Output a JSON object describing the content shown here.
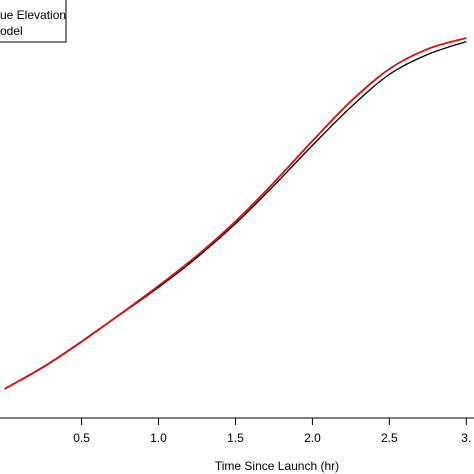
{
  "chart_data": {
    "type": "line",
    "xlabel": "Time Since Launch (hr)",
    "xlim": [
      -0.03,
      3.05
    ],
    "ylim": [
      0,
      1
    ],
    "x_ticks": [
      0.5,
      1.0,
      1.5,
      2.0,
      2.5,
      3.0
    ],
    "x_tick_labels": [
      "0.5",
      "1.0",
      "1.5",
      "2.0",
      "2.5",
      "3."
    ],
    "grid": false,
    "legend": {
      "position": "top-left",
      "entries": [
        "ue Elevation",
        "odel"
      ]
    },
    "series": [
      {
        "name": "ue Elevation",
        "color": "#000000",
        "x": [
          0.0,
          0.25,
          0.5,
          0.75,
          1.0,
          1.25,
          1.5,
          1.75,
          2.0,
          2.25,
          2.5,
          2.75,
          3.0
        ],
        "values": [
          0.036,
          0.095,
          0.165,
          0.24,
          0.315,
          0.397,
          0.49,
          0.595,
          0.705,
          0.81,
          0.9,
          0.955,
          0.99
        ]
      },
      {
        "name": "odel",
        "color": "#d81010",
        "x": [
          0.0,
          0.25,
          0.5,
          0.75,
          1.0,
          1.25,
          1.5,
          1.75,
          2.0,
          2.25,
          2.5,
          2.75,
          3.0
        ],
        "values": [
          0.036,
          0.096,
          0.166,
          0.241,
          0.319,
          0.402,
          0.496,
          0.603,
          0.717,
          0.826,
          0.915,
          0.97,
          1.0
        ]
      }
    ]
  }
}
